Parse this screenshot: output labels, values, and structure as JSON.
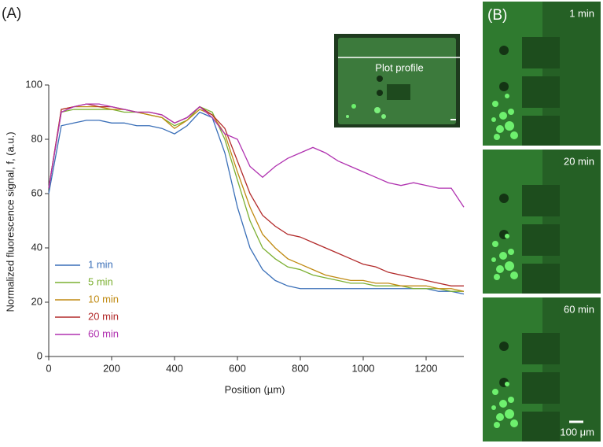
{
  "chart_data": {
    "type": "line",
    "panel_label": "(A)",
    "xlabel": "Position (µm)",
    "ylabel": "Normalized fluorescence signal, f, (a.u.)",
    "x": [
      0,
      40,
      80,
      120,
      160,
      200,
      240,
      280,
      320,
      360,
      400,
      440,
      480,
      520,
      560,
      600,
      640,
      680,
      720,
      760,
      800,
      840,
      880,
      920,
      960,
      1000,
      1040,
      1080,
      1120,
      1160,
      1200,
      1240,
      1280,
      1320
    ],
    "series": [
      {
        "name": "1 min",
        "color": "#3a6fb8",
        "values": [
          60,
          85,
          86,
          87,
          87,
          86,
          86,
          85,
          85,
          84,
          82,
          85,
          90,
          88,
          75,
          55,
          40,
          32,
          28,
          26,
          25,
          25,
          25,
          25,
          25,
          25,
          25,
          25,
          25,
          25,
          25,
          24,
          24,
          23
        ]
      },
      {
        "name": "5 min",
        "color": "#7cb032",
        "values": [
          62,
          90,
          91,
          91,
          91,
          91,
          90,
          90,
          89,
          88,
          85,
          87,
          92,
          90,
          80,
          65,
          50,
          40,
          36,
          33,
          32,
          30,
          29,
          28,
          27,
          27,
          26,
          26,
          26,
          25,
          25,
          25,
          24,
          24
        ]
      },
      {
        "name": "10 min",
        "color": "#c08a12",
        "values": [
          62,
          91,
          92,
          92,
          92,
          91,
          91,
          90,
          89,
          88,
          84,
          87,
          91,
          89,
          82,
          68,
          55,
          45,
          40,
          36,
          34,
          32,
          30,
          29,
          28,
          28,
          27,
          27,
          26,
          26,
          26,
          25,
          25,
          24
        ]
      },
      {
        "name": "20 min",
        "color": "#b22a2a",
        "values": [
          62,
          91,
          92,
          93,
          92,
          92,
          91,
          90,
          90,
          89,
          86,
          88,
          92,
          89,
          84,
          72,
          60,
          52,
          48,
          45,
          44,
          42,
          40,
          38,
          36,
          34,
          33,
          31,
          30,
          29,
          28,
          27,
          26,
          26
        ]
      },
      {
        "name": "60 min",
        "color": "#b032b0",
        "values": [
          62,
          90,
          92,
          93,
          93,
          92,
          91,
          90,
          90,
          89,
          86,
          88,
          92,
          88,
          82,
          80,
          70,
          66,
          70,
          73,
          75,
          77,
          75,
          72,
          70,
          68,
          66,
          64,
          63,
          64,
          63,
          62,
          62,
          55
        ]
      }
    ],
    "xlim": [
      0,
      1320
    ],
    "ylim": [
      0,
      100
    ],
    "xticks": [
      0,
      200,
      400,
      600,
      800,
      1000,
      1200
    ],
    "yticks": [
      0,
      20,
      40,
      60,
      80,
      100
    ],
    "legend": "lower left",
    "inset_label": "Plot profile",
    "panel_b": {
      "label": "(B)",
      "times": [
        "1 min",
        "20 min",
        "60 min"
      ],
      "scale_bar": "100 μm"
    }
  }
}
